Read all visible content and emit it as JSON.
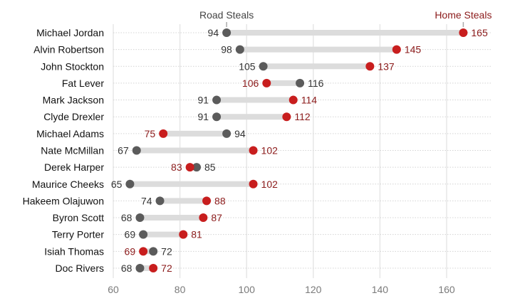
{
  "chart_data": {
    "type": "dumbbell",
    "title": "",
    "xlabel": "",
    "ylabel": "",
    "xlim": [
      60,
      173
    ],
    "xticks": [
      60,
      80,
      100,
      120,
      140,
      160
    ],
    "grid": true,
    "series": [
      {
        "name": "Road Steals",
        "color": "#5b5b5b",
        "label_color": "#333333"
      },
      {
        "name": "Home Steals",
        "color": "#c81e1e",
        "label_color": "#8b1a1a"
      }
    ],
    "categories": [
      "Michael Jordan",
      "Alvin Robertson",
      "John Stockton",
      "Fat Lever",
      "Mark Jackson",
      "Clyde Drexler",
      "Michael Adams",
      "Nate McMillan",
      "Derek Harper",
      "Maurice Cheeks",
      "Hakeem Olajuwon",
      "Byron Scott",
      "Terry Porter",
      "Isiah Thomas",
      "Doc Rivers"
    ],
    "road": [
      94,
      98,
      105,
      116,
      91,
      91,
      94,
      67,
      85,
      65,
      74,
      68,
      69,
      72,
      68
    ],
    "home": [
      165,
      145,
      137,
      106,
      114,
      112,
      75,
      102,
      83,
      102,
      88,
      87,
      81,
      69,
      72
    ]
  }
}
